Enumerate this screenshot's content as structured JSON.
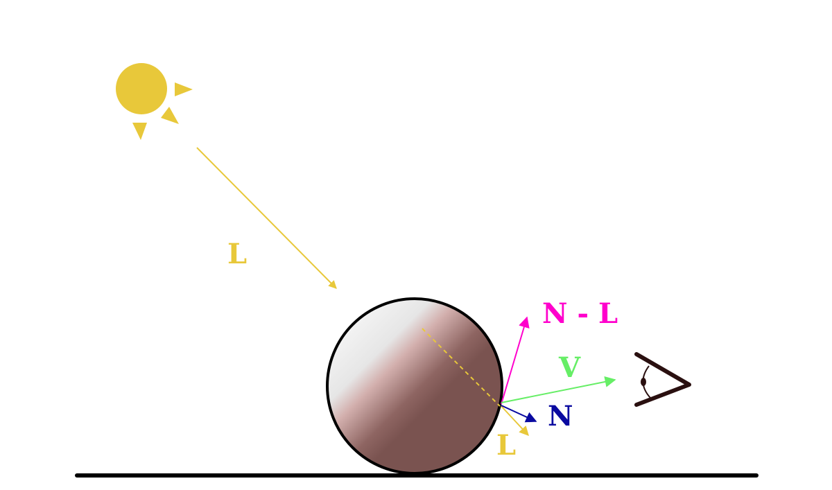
{
  "labels": {
    "light_incoming": "L",
    "light_reflect": "L",
    "normal": "N",
    "view": "V",
    "n_minus_l": "N - L"
  },
  "colors": {
    "sun": "#e8c83a",
    "light": "#e8c83a",
    "normal": "#0a0aa0",
    "view": "#66ee66",
    "n_minus_l": "#ff00cc",
    "sphere_shadow": "#7a5350",
    "sphere_highlight": "#f2f2f2",
    "ground": "#000000",
    "eye": "#2a1010"
  },
  "icons": {
    "sun": "sun-icon",
    "eye": "eye-icon"
  }
}
